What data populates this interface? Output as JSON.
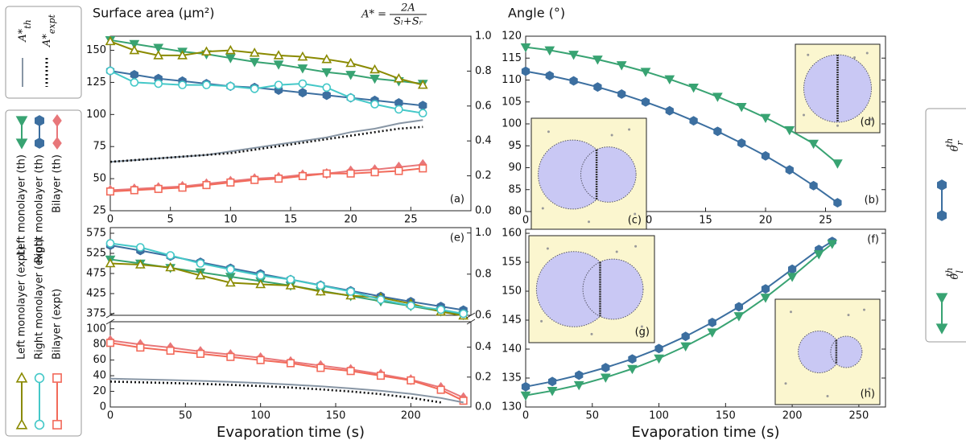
{
  "chart_data": [
    {
      "type": "line",
      "ylabel": "Surface area (μm²)",
      "formula": {
        "lhs": "A* =",
        "num": "2A",
        "den": "Sₗ+Sᵣ"
      },
      "panel_label": "(a)",
      "panel_label_corner": "bottom-right",
      "xlim": [
        0,
        30
      ],
      "xticks": [
        0,
        5,
        10,
        15,
        20,
        25
      ],
      "ylim": [
        25,
        161
      ],
      "yticks": [
        25,
        50,
        75,
        100,
        125,
        150
      ],
      "y2lim": [
        0,
        1
      ],
      "y2ticks": [
        {
          "value": 0,
          "label": "0.0"
        },
        0.2,
        0.4,
        0.6,
        0.8,
        {
          "value": 1,
          "label": "1.0"
        }
      ],
      "x": [
        0,
        2,
        4,
        6,
        8,
        10,
        12,
        14,
        16,
        18,
        20,
        22,
        24,
        26
      ],
      "series": [
        {
          "name": "Left monolayer (th)",
          "color": "#38a372",
          "marker": "v",
          "marker_fill": true,
          "linestyle": "solid",
          "values": [
            158,
            155,
            152,
            149,
            147,
            144,
            141,
            139,
            136,
            133,
            131,
            128,
            126,
            124
          ]
        },
        {
          "name": "Right monolayer (th)",
          "color": "#3c6fa0",
          "marker": "h",
          "marker_fill": true,
          "linestyle": "solid",
          "values": [
            134,
            131,
            128,
            126,
            124,
            122,
            121,
            119,
            117,
            115,
            113,
            111,
            109,
            107
          ]
        },
        {
          "name": "Bilayer (th)",
          "color": "#e8777a",
          "marker": "D",
          "marker_fill": true,
          "linestyle": "solid",
          "values": [
            41,
            42,
            43,
            44,
            46,
            48,
            50,
            51,
            53,
            54,
            56,
            57,
            59,
            61
          ]
        },
        {
          "name": "Left monolayer (expt)",
          "color": "#8a8a00",
          "marker": "^",
          "marker_fill": false,
          "linestyle": "solid",
          "values": [
            157,
            150,
            146,
            146,
            149,
            150,
            148,
            146,
            145,
            143,
            140,
            135,
            128,
            123
          ]
        },
        {
          "name": "Right monolayer (expt)",
          "color": "#44c8c8",
          "marker": "o",
          "marker_fill": false,
          "linestyle": "solid",
          "values": [
            134,
            125,
            124,
            123,
            123,
            122,
            120,
            123,
            124,
            121,
            113,
            108,
            104,
            101
          ]
        },
        {
          "name": "Bilayer (expt)",
          "color": "#f26a5a",
          "marker": "s",
          "marker_fill": false,
          "linestyle": "solid",
          "values": [
            40,
            41,
            42,
            43,
            45,
            47,
            49,
            50,
            52,
            54,
            54,
            55,
            56,
            58
          ]
        },
        {
          "name": "A*",
          "sub": "th",
          "color": "#8896a5",
          "marker": "none",
          "linestyle": "solid",
          "axis": "y2",
          "values": [
            0.28,
            0.29,
            0.3,
            0.31,
            0.32,
            0.34,
            0.36,
            0.38,
            0.4,
            0.42,
            0.45,
            0.47,
            0.5,
            0.52
          ]
        },
        {
          "name": "A*",
          "sub": "expt",
          "color": "#111111",
          "marker": "none",
          "linestyle": "dotted",
          "axis": "y2",
          "values": [
            0.28,
            0.29,
            0.3,
            0.31,
            0.32,
            0.33,
            0.35,
            0.37,
            0.39,
            0.41,
            0.43,
            0.45,
            0.47,
            0.48
          ]
        }
      ]
    },
    {
      "type": "line",
      "ylabel": "Angle (°)",
      "panel_label": "(b)",
      "panel_label_corner": "bottom-right",
      "xlim": [
        0,
        30
      ],
      "xticks": [
        0,
        5,
        10,
        15,
        20,
        25
      ],
      "ylim": [
        80,
        120
      ],
      "yticks": [
        80,
        85,
        90,
        95,
        100,
        105,
        110,
        115,
        120
      ],
      "insets": [
        {
          "label": "(d)"
        },
        {
          "label": "(c)"
        }
      ],
      "x": [
        0,
        2,
        4,
        6,
        8,
        10,
        12,
        14,
        16,
        18,
        20,
        22,
        24,
        26
      ],
      "series": [
        {
          "name": "θ",
          "sub": "l",
          "sup": "th",
          "color": "#38a372",
          "marker": "v",
          "marker_fill": true,
          "linestyle": "solid",
          "values": [
            117.5,
            116.8,
            115.8,
            114.7,
            113.4,
            111.9,
            110.2,
            108.3,
            106.2,
            103.9,
            101.4,
            98.6,
            95.5,
            91
          ]
        },
        {
          "name": "θ",
          "sub": "r",
          "sup": "th",
          "color": "#3c6fa0",
          "marker": "h",
          "marker_fill": true,
          "linestyle": "solid",
          "values": [
            112,
            111,
            109.8,
            108.4,
            106.8,
            105,
            103,
            100.7,
            98.3,
            95.6,
            92.7,
            89.5,
            85.9,
            82
          ]
        }
      ]
    },
    {
      "type": "line",
      "panel_label": "(e)",
      "panel_label_corner": "top-right",
      "xlim": [
        0,
        240
      ],
      "ylim": [
        371,
        589
      ],
      "yticks": [
        375,
        425,
        475,
        525,
        575
      ],
      "y2lim": [
        0.6,
        1.026
      ],
      "y2ticks": [
        0.6,
        0.8,
        {
          "value": 1,
          "label": "1.0"
        }
      ],
      "x": [
        0,
        20,
        40,
        60,
        80,
        100,
        120,
        140,
        160,
        180,
        200,
        220,
        235
      ],
      "series": [
        {
          "color": "#38a372",
          "marker": "v",
          "marker_fill": true,
          "linestyle": "solid",
          "values": [
            510,
            500,
            489,
            478,
            467,
            456,
            445,
            432,
            419,
            406,
            394,
            381,
            372
          ]
        },
        {
          "color": "#3c6fa0",
          "marker": "h",
          "marker_fill": true,
          "linestyle": "solid",
          "values": [
            545,
            532,
            518,
            503,
            488,
            474,
            460,
            446,
            432,
            418,
            405,
            393,
            384
          ]
        },
        {
          "color": "#8a8a00",
          "marker": "^",
          "marker_fill": false,
          "linestyle": "solid",
          "values": [
            500,
            497,
            490,
            470,
            452,
            448,
            445,
            430,
            420,
            415,
            400,
            380,
            370
          ]
        },
        {
          "color": "#44c8c8",
          "marker": "o",
          "marker_fill": false,
          "linestyle": "solid",
          "values": [
            550,
            540,
            520,
            500,
            485,
            470,
            460,
            445,
            430,
            410,
            395,
            385,
            375
          ]
        }
      ]
    },
    {
      "type": "line",
      "xlabel": "Evaporation time (s)",
      "xlim": [
        0,
        240
      ],
      "xticks": [
        0,
        50,
        100,
        150,
        200
      ],
      "ylim": [
        0,
        109
      ],
      "yticks": [
        0,
        20,
        40,
        60,
        80,
        100
      ],
      "y2lim": [
        0,
        0.57
      ],
      "y2ticks": [
        {
          "value": 0,
          "label": "0.0"
        },
        0.2,
        0.4
      ],
      "x": [
        0,
        20,
        40,
        60,
        80,
        100,
        120,
        140,
        160,
        180,
        200,
        220,
        235
      ],
      "series": [
        {
          "color": "#e8777a",
          "marker": "D",
          "marker_fill": true,
          "linestyle": "solid",
          "values": [
            85,
            80,
            76,
            71,
            67,
            63,
            58,
            53,
            48,
            42,
            35,
            25,
            12
          ]
        },
        {
          "color": "#f26a5a",
          "marker": "s",
          "marker_fill": false,
          "linestyle": "solid",
          "values": [
            82,
            76,
            72,
            68,
            64,
            60,
            56,
            50,
            46,
            40,
            34,
            22,
            8
          ]
        },
        {
          "color": "#8896a5",
          "marker": "none",
          "linestyle": "solid",
          "axis": "y2",
          "values": [
            0.19,
            0.185,
            0.18,
            0.175,
            0.168,
            0.16,
            0.15,
            0.138,
            0.124,
            0.108,
            0.088,
            0.06,
            0.03
          ]
        },
        {
          "color": "#111111",
          "marker": "none",
          "linestyle": "dotted",
          "axis": "y2",
          "values": [
            0.17,
            0.165,
            0.16,
            0.155,
            0.148,
            0.14,
            0.13,
            0.118,
            0.104,
            0.086,
            0.062,
            0.03,
            null
          ]
        }
      ]
    },
    {
      "type": "line",
      "xlabel": "Evaporation time (s)",
      "panel_label": "(f)",
      "panel_label_corner": "top-right",
      "xlim": [
        0,
        270
      ],
      "xticks": [
        0,
        50,
        100,
        150,
        200,
        250
      ],
      "ylim": [
        130,
        160.7
      ],
      "yticks": [
        130,
        135,
        140,
        145,
        150,
        155,
        160
      ],
      "insets": [
        {
          "label": "(g)"
        },
        {
          "label": "(h)"
        }
      ],
      "x": [
        0,
        20,
        40,
        60,
        80,
        100,
        120,
        140,
        160,
        180,
        200,
        220,
        230
      ],
      "series": [
        {
          "color": "#3c6fa0",
          "marker": "h",
          "marker_fill": true,
          "linestyle": "solid",
          "values": [
            133.5,
            134.4,
            135.5,
            136.8,
            138.3,
            140.1,
            142.2,
            144.6,
            147.3,
            150.4,
            153.8,
            157.2,
            158.6
          ]
        },
        {
          "color": "#38a372",
          "marker": "v",
          "marker_fill": true,
          "linestyle": "solid",
          "values": [
            132,
            132.8,
            133.8,
            135.1,
            136.6,
            138.4,
            140.5,
            142.9,
            145.7,
            148.9,
            152.5,
            156.4,
            158.2
          ]
        }
      ]
    }
  ]
}
